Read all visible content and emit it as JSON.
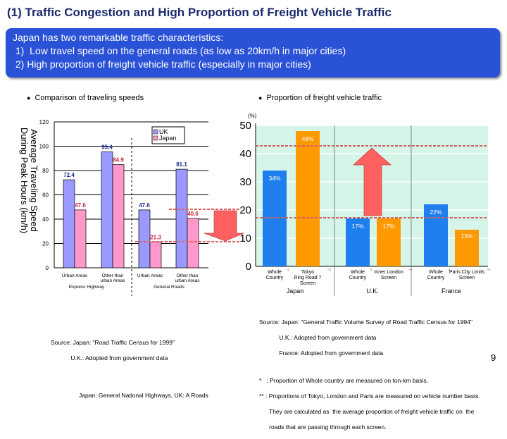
{
  "title": "(1) Traffic Congestion and High Proportion of Freight Vehicle Traffic",
  "intro": {
    "lines": [
      "Japan has two remarkable traffic characteristics:",
      " 1)  Low travel speed on the general roads (as low as 20km/h in major cities)",
      " 2) High proportion of freight vehicle traffic (especially in major cities)"
    ]
  },
  "left_caption": "Comparison of traveling speeds",
  "right_caption": "Proportion of freight vehicle traffic",
  "chart_data": [
    {
      "type": "bar",
      "ylabel": "Average Traveling Speed During Peak Hours (km/h)",
      "ylim": [
        0,
        120
      ],
      "yticks": [
        0,
        20,
        40,
        60,
        80,
        100,
        120
      ],
      "grid": true,
      "legend": "top-right",
      "categories": [
        "Urban Areas",
        "Other than urban Areas",
        "Urban Areas",
        "Other than urban Areas"
      ],
      "groups": [
        {
          "label": "Express Highway"
        },
        {
          "label": "General Roads"
        }
      ],
      "series": [
        {
          "name": "UK",
          "values": [
            72.4,
            95.4,
            47.6,
            81.1
          ],
          "labels": [
            "72.4",
            "95.4",
            "47.6",
            "81.1"
          ],
          "color": "#9999ff"
        },
        {
          "name": "Japan",
          "values": [
            47.6,
            84.9,
            21.3,
            40.6
          ],
          "labels": [
            "47.6",
            "84.9",
            "21.3",
            "40.6"
          ],
          "color": "#ff99cc"
        }
      ]
    },
    {
      "type": "bar",
      "unit": "(%)",
      "ylim": [
        0,
        50
      ],
      "yticks": [
        0,
        10,
        20,
        30,
        40,
        50
      ],
      "grid": true,
      "bars": [
        {
          "label": "Whole Country",
          "mark": "*1",
          "value": 34,
          "text": "34%",
          "color": "#1f7fef"
        },
        {
          "label": "Tokyo Ring Road 7 Screen",
          "mark": "**2",
          "value": 48,
          "text": "48%",
          "color": "#ff9900"
        },
        {
          "label": "Whole Country",
          "mark": "*1",
          "value": 17,
          "text": "17%",
          "color": "#1f7fef"
        },
        {
          "label": "Inner London Screen",
          "mark": "**3",
          "value": 17,
          "text": "17%",
          "color": "#ff9900"
        },
        {
          "label": "Whole Country",
          "mark": "*1",
          "value": 22,
          "text": "22%",
          "color": "#1f7fef"
        },
        {
          "label": "Paris City Limits Screen",
          "mark": "**4",
          "value": 13,
          "text": "13%",
          "color": "#ff9900"
        }
      ],
      "groups": [
        "Japan",
        "U.K.",
        "France"
      ]
    }
  ],
  "left_source": [
    "Source: Japan: \"Road Traffic Census for 1999\"",
    "            U.K.: Adopted from government data",
    "",
    "",
    "Japan: General National Highways, UK: A Roads"
  ],
  "right_source": [
    "Source: Japan: \"General Traffic Volume Survey of Road Traffic Census for 1994\"",
    "            U.K.: Adopted from government data",
    "            France: Adopted from government data"
  ],
  "notes": [
    "*   : Proportion of Whole country are measured on ton-km basis.",
    "** : Proportions of Tokyo, London and Paris are measured on vehicle number basis.",
    "      They are calculated as  the average proportion of freight vehicle traffic on  the",
    "      roads that are passing through each screen."
  ],
  "page_number": "9"
}
